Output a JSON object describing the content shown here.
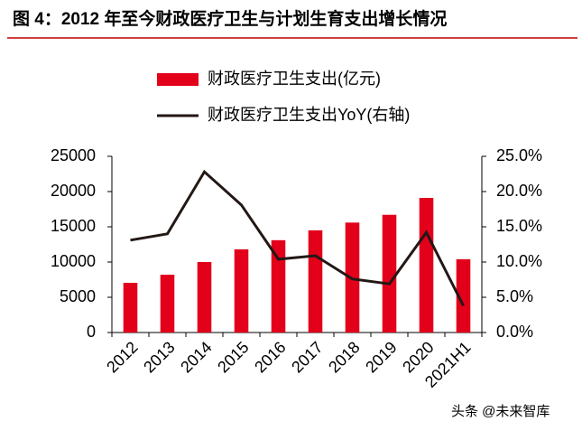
{
  "chart_data": {
    "type": "bar_line",
    "title": "图 4：2012 年至今财政医疗卫生与计划生育支出增长情况",
    "categories": [
      "2012",
      "2013",
      "2014",
      "2015",
      "2016",
      "2017",
      "2018",
      "2019",
      "2020",
      "2021H1"
    ],
    "series": [
      {
        "name": "财政医疗卫生支出(亿元)",
        "type": "bar",
        "color": "#e2001a",
        "values": [
          7050,
          8200,
          10000,
          11800,
          13100,
          14500,
          15600,
          16700,
          19100,
          10400
        ]
      },
      {
        "name": "财政医疗卫生支出YoY(右轴)",
        "type": "line",
        "axis": "y2",
        "color": "#231815",
        "values": [
          13.1,
          14.0,
          22.8,
          18.1,
          10.4,
          10.9,
          7.6,
          6.9,
          14.2,
          3.8
        ]
      }
    ],
    "ylim": [
      0,
      25000
    ],
    "yticks": [
      0,
      5000,
      10000,
      15000,
      20000,
      25000
    ],
    "y2lim": [
      0,
      25
    ],
    "y2ticks": [
      {
        "value": 0,
        "label": "0.0%"
      },
      {
        "value": 5,
        "label": "5.0%"
      },
      {
        "value": 10,
        "label": "10.0%"
      },
      {
        "value": 15,
        "label": "15.0%"
      },
      {
        "value": 20,
        "label": "20.0%"
      },
      {
        "value": 25,
        "label": "25.0%"
      }
    ]
  },
  "watermark": "头条 @未来智库"
}
